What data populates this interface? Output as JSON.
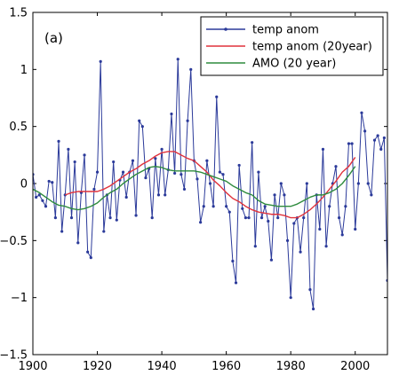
{
  "chart_data": {
    "type": "line",
    "panel_label": "(a)",
    "xlim": [
      1900,
      2010
    ],
    "ylim": [
      -1.5,
      1.5
    ],
    "x_ticks": [
      1900,
      1920,
      1940,
      1960,
      1980,
      2000
    ],
    "y_ticks": [
      1.5,
      1,
      0.5,
      0,
      -0.5,
      -1,
      -1.5
    ],
    "x_tick_labels": [
      "1900",
      "1920",
      "1940",
      "1960",
      "1980",
      "2000"
    ],
    "y_tick_labels": [
      "1.5",
      "1",
      "0.5",
      "0",
      "−0.5",
      "−1",
      "−1.5"
    ],
    "grid": false,
    "legend_position": "top-right",
    "series": [
      {
        "name": "temp anom",
        "color": "#2b3a9a",
        "marker": "dot",
        "x": [
          1900,
          1901,
          1902,
          1903,
          1904,
          1905,
          1906,
          1907,
          1908,
          1909,
          1910,
          1911,
          1912,
          1913,
          1914,
          1915,
          1916,
          1917,
          1918,
          1919,
          1920,
          1921,
          1922,
          1923,
          1924,
          1925,
          1926,
          1927,
          1928,
          1929,
          1930,
          1931,
          1932,
          1933,
          1934,
          1935,
          1936,
          1937,
          1938,
          1939,
          1940,
          1941,
          1942,
          1943,
          1944,
          1945,
          1946,
          1947,
          1948,
          1949,
          1950,
          1951,
          1952,
          1953,
          1954,
          1955,
          1956,
          1957,
          1958,
          1959,
          1960,
          1961,
          1962,
          1963,
          1964,
          1965,
          1966,
          1967,
          1968,
          1969,
          1970,
          1971,
          1972,
          1973,
          1974,
          1975,
          1976,
          1977,
          1978,
          1979,
          1980,
          1981,
          1982,
          1983,
          1984,
          1985,
          1986,
          1987,
          1988,
          1989,
          1990,
          1991,
          1992,
          1993,
          1994,
          1995,
          1996,
          1997,
          1998,
          1999,
          2000,
          2001,
          2002,
          2003,
          2004,
          2005,
          2006,
          2007,
          2008,
          2009,
          2010
        ],
        "values": [
          0.08,
          -0.12,
          -0.1,
          -0.15,
          -0.2,
          0.02,
          0.01,
          -0.3,
          0.37,
          -0.42,
          -0.1,
          0.3,
          -0.3,
          0.19,
          -0.52,
          -0.08,
          0.25,
          -0.6,
          -0.65,
          -0.05,
          0.1,
          1.07,
          -0.42,
          -0.1,
          -0.3,
          0.19,
          -0.32,
          0.03,
          0.1,
          -0.12,
          0.1,
          0.2,
          -0.28,
          0.55,
          0.5,
          0.05,
          0.13,
          -0.3,
          0.22,
          -0.1,
          0.3,
          -0.1,
          0.12,
          0.61,
          0.09,
          1.09,
          0.08,
          -0.05,
          0.55,
          1.0,
          0.2,
          0.04,
          -0.34,
          -0.2,
          0.2,
          0.0,
          -0.2,
          0.76,
          0.1,
          0.08,
          -0.2,
          -0.25,
          -0.68,
          -0.87,
          0.16,
          -0.22,
          -0.3,
          -0.3,
          0.36,
          -0.55,
          0.1,
          -0.3,
          -0.2,
          -0.33,
          -0.67,
          -0.1,
          -0.3,
          0.0,
          -0.1,
          -0.5,
          -1.0,
          -0.35,
          -0.3,
          -0.6,
          -0.3,
          0.0,
          -0.93,
          -1.1,
          -0.1,
          -0.4,
          0.3,
          -0.55,
          -0.2,
          0.0,
          0.15,
          -0.3,
          -0.45,
          -0.2,
          0.35,
          0.35,
          -0.4,
          0.0,
          0.62,
          0.46,
          0.0,
          -0.1,
          0.38,
          0.42,
          0.3,
          0.4,
          -0.85
        ],
        "values_note": "",
        "marker_size": 1.6
      },
      {
        "name": "temp anom (20year)",
        "color": "#e0323c",
        "x": [
          1910,
          1912,
          1914,
          1916,
          1918,
          1920,
          1922,
          1924,
          1926,
          1928,
          1930,
          1932,
          1934,
          1936,
          1938,
          1940,
          1942,
          1944,
          1946,
          1948,
          1950,
          1952,
          1954,
          1956,
          1958,
          1960,
          1962,
          1964,
          1966,
          1968,
          1970,
          1972,
          1974,
          1976,
          1978,
          1980,
          1982,
          1984,
          1986,
          1988,
          1990,
          1992,
          1994,
          1996,
          1998,
          2000
        ],
        "values": [
          -0.1,
          -0.08,
          -0.07,
          -0.07,
          -0.07,
          -0.07,
          -0.05,
          -0.02,
          0.02,
          0.06,
          0.1,
          0.13,
          0.17,
          0.2,
          0.24,
          0.27,
          0.28,
          0.28,
          0.25,
          0.22,
          0.2,
          0.15,
          0.1,
          0.03,
          -0.02,
          -0.08,
          -0.13,
          -0.16,
          -0.2,
          -0.23,
          -0.25,
          -0.26,
          -0.27,
          -0.27,
          -0.28,
          -0.3,
          -0.3,
          -0.27,
          -0.23,
          -0.18,
          -0.12,
          -0.05,
          0.02,
          0.1,
          0.15,
          0.23
        ]
      },
      {
        "name": "AMO (20 year)",
        "color": "#2e8b3d",
        "x": [
          1900,
          1902,
          1904,
          1906,
          1908,
          1910,
          1912,
          1914,
          1916,
          1918,
          1920,
          1922,
          1924,
          1926,
          1928,
          1930,
          1932,
          1934,
          1936,
          1938,
          1940,
          1942,
          1944,
          1946,
          1948,
          1950,
          1952,
          1954,
          1956,
          1958,
          1960,
          1962,
          1964,
          1966,
          1968,
          1970,
          1972,
          1974,
          1976,
          1978,
          1980,
          1982,
          1984,
          1986,
          1988,
          1990,
          1992,
          1994,
          1996,
          1998,
          2000
        ],
        "values": [
          -0.05,
          -0.08,
          -0.12,
          -0.16,
          -0.19,
          -0.2,
          -0.22,
          -0.23,
          -0.22,
          -0.2,
          -0.17,
          -0.12,
          -0.08,
          -0.05,
          0.0,
          0.04,
          0.08,
          0.11,
          0.14,
          0.15,
          0.14,
          0.12,
          0.11,
          0.11,
          0.11,
          0.11,
          0.1,
          0.08,
          0.06,
          0.04,
          0.02,
          -0.02,
          -0.05,
          -0.08,
          -0.1,
          -0.15,
          -0.18,
          -0.19,
          -0.2,
          -0.2,
          -0.2,
          -0.18,
          -0.15,
          -0.12,
          -0.1,
          -0.1,
          -0.08,
          -0.05,
          0.0,
          0.07,
          0.15
        ]
      }
    ]
  }
}
